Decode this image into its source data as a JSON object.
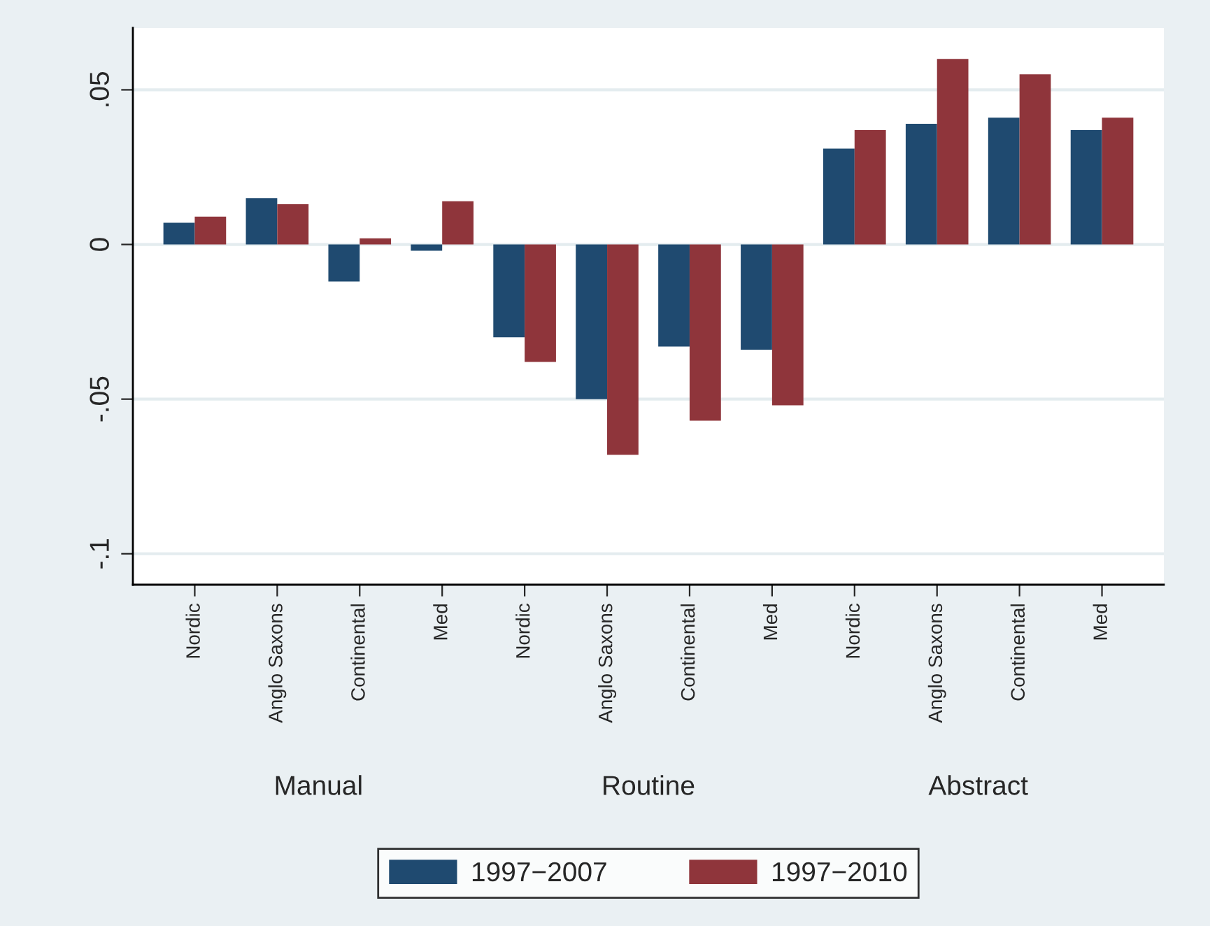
{
  "chart_data": {
    "type": "bar",
    "categories": [
      "Nordic",
      "Anglo Saxons",
      "Continental",
      "Med",
      "Nordic",
      "Anglo Saxons",
      "Continental",
      "Med",
      "Nordic",
      "Anglo Saxons",
      "Continental",
      "Med"
    ],
    "series": [
      {
        "name": "1997−2007",
        "color": "#1f4a70",
        "values": [
          0.007,
          0.015,
          -0.012,
          -0.002,
          -0.03,
          -0.05,
          -0.033,
          -0.034,
          0.031,
          0.039,
          0.041,
          0.037
        ]
      },
      {
        "name": "1997−2010",
        "color": "#8f353b",
        "values": [
          0.009,
          0.013,
          0.002,
          0.014,
          -0.038,
          -0.068,
          -0.057,
          -0.052,
          0.037,
          0.06,
          0.055,
          0.041
        ]
      }
    ],
    "annotations": [
      "Manual",
      "Routine",
      "Abstract"
    ],
    "ylim": [
      -0.11,
      0.07
    ],
    "yticks": [
      {
        "value": -0.1,
        "label": "-.1"
      },
      {
        "value": -0.05,
        "label": "-.05"
      },
      0,
      {
        "value": 0.05,
        "label": ".05"
      }
    ],
    "grid": "y",
    "legend": "bottom"
  }
}
